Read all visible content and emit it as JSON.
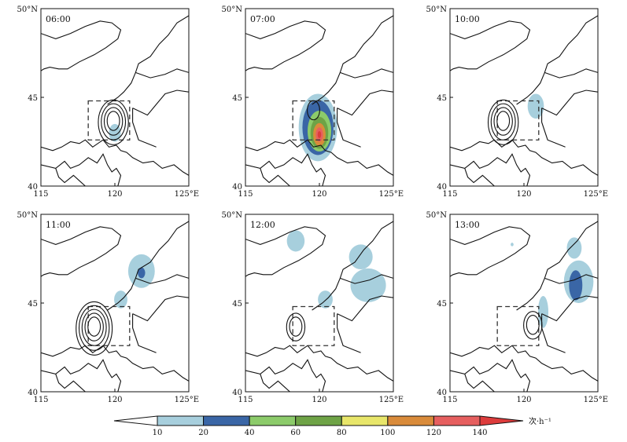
{
  "chart_data": {
    "type": "heatmap",
    "description_free": true,
    "x_ticks": [
      "115",
      "120",
      "125°E"
    ],
    "y_ticks": [
      "40",
      "45",
      "50°N"
    ],
    "xlim": [
      115,
      125
    ],
    "ylim": [
      40,
      50
    ],
    "panels": [
      {
        "time": "06:00",
        "contour_center": [
          119.9,
          43.7
        ],
        "contour_rings": 4,
        "fill_blobs": [
          {
            "lon": 120.0,
            "lat": 43.0,
            "rx": 0.4,
            "ry": 0.5,
            "level": 10
          }
        ]
      },
      {
        "time": "07:00",
        "contour_center": [
          119.6,
          44.3
        ],
        "contour_rings": 1,
        "fill_blobs": [
          {
            "lon": 119.9,
            "lat": 43.3,
            "rx": 1.3,
            "ry": 1.9,
            "level": 10
          },
          {
            "lon": 119.9,
            "lat": 43.3,
            "rx": 1.05,
            "ry": 1.55,
            "level": 20
          },
          {
            "lon": 120.0,
            "lat": 43.1,
            "rx": 0.8,
            "ry": 1.15,
            "level": 40
          },
          {
            "lon": 120.0,
            "lat": 43.0,
            "rx": 0.6,
            "ry": 0.9,
            "level": 60
          },
          {
            "lon": 120.0,
            "lat": 42.9,
            "rx": 0.42,
            "ry": 0.65,
            "level": 100
          },
          {
            "lon": 120.0,
            "lat": 42.9,
            "rx": 0.25,
            "ry": 0.4,
            "level": 120
          },
          {
            "lon": 120.0,
            "lat": 42.9,
            "rx": 0.12,
            "ry": 0.2,
            "level": 140
          }
        ]
      },
      {
        "time": "10:00",
        "contour_center": [
          118.6,
          43.7
        ],
        "contour_rings": 4,
        "fill_blobs": [
          {
            "lon": 120.8,
            "lat": 44.5,
            "rx": 0.55,
            "ry": 0.7,
            "level": 10
          }
        ]
      },
      {
        "time": "11:00",
        "contour_center": [
          118.6,
          43.7
        ],
        "contour_rings": 5,
        "fill_blobs": [
          {
            "lon": 121.8,
            "lat": 46.8,
            "rx": 0.9,
            "ry": 0.95,
            "level": 10
          },
          {
            "lon": 121.8,
            "lat": 46.7,
            "rx": 0.25,
            "ry": 0.3,
            "level": 20
          },
          {
            "lon": 120.4,
            "lat": 45.2,
            "rx": 0.45,
            "ry": 0.5,
            "level": 10
          }
        ]
      },
      {
        "time": "12:00",
        "contour_center": [
          118.4,
          43.7
        ],
        "contour_rings": 2,
        "fill_blobs": [
          {
            "lon": 118.4,
            "lat": 48.5,
            "rx": 0.6,
            "ry": 0.6,
            "level": 10
          },
          {
            "lon": 122.8,
            "lat": 47.6,
            "rx": 0.8,
            "ry": 0.7,
            "level": 10
          },
          {
            "lon": 123.3,
            "lat": 46.0,
            "rx": 1.2,
            "ry": 0.95,
            "level": 10
          },
          {
            "lon": 120.4,
            "lat": 45.2,
            "rx": 0.5,
            "ry": 0.5,
            "level": 10
          }
        ]
      },
      {
        "time": "13:00",
        "contour_center": [
          120.6,
          43.8
        ],
        "contour_rings": 2,
        "fill_blobs": [
          {
            "lon": 123.4,
            "lat": 48.1,
            "rx": 0.5,
            "ry": 0.6,
            "level": 10
          },
          {
            "lon": 123.7,
            "lat": 46.2,
            "rx": 1.0,
            "ry": 1.2,
            "level": 10
          },
          {
            "lon": 123.5,
            "lat": 46.0,
            "rx": 0.45,
            "ry": 0.85,
            "level": 20
          },
          {
            "lon": 121.3,
            "lat": 44.5,
            "rx": 0.35,
            "ry": 0.9,
            "level": 10
          },
          {
            "lon": 119.2,
            "lat": 48.3,
            "rx": 0.1,
            "ry": 0.1,
            "level": 10
          }
        ]
      }
    ],
    "box": {
      "lon_min": 118.2,
      "lon_max": 121.0,
      "lat_min": 42.6,
      "lat_max": 44.8
    },
    "colorbar": {
      "levels": [
        10,
        20,
        40,
        60,
        80,
        100,
        120,
        140
      ],
      "labels": [
        "10",
        "20",
        "40",
        "60",
        "80",
        "100",
        "120",
        "140"
      ],
      "unit": "次·h⁻¹",
      "colors": [
        "#ffffff",
        "#a7cfdd",
        "#3a66a6",
        "#8ccb6a",
        "#6ea346",
        "#e8e66a",
        "#d98b3a",
        "#e65f5f",
        "#dd3c3c"
      ]
    }
  }
}
